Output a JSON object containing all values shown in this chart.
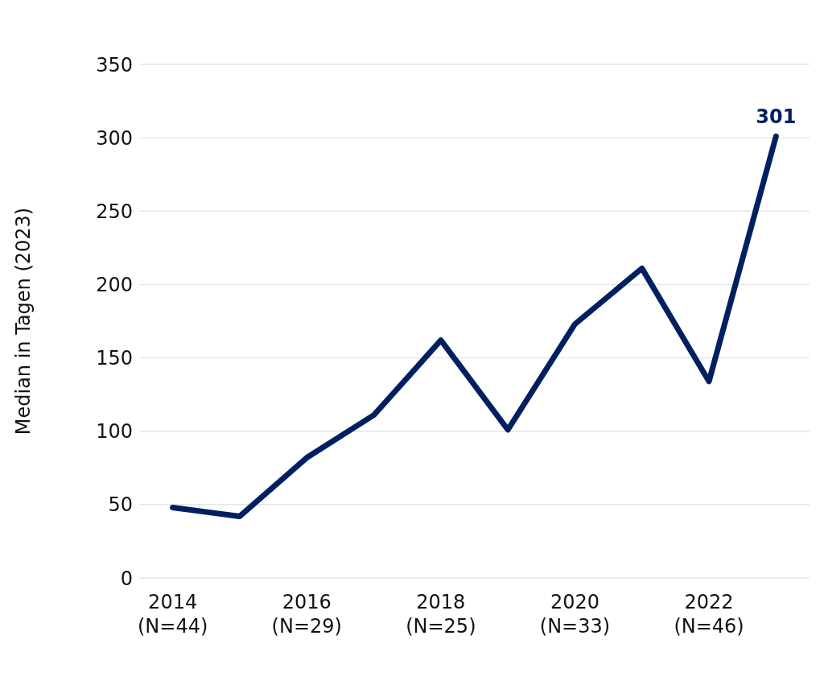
{
  "chart_data": {
    "type": "line",
    "ylabel": "Median in Tagen (2023)",
    "categories": [
      "2014\n(N=44)",
      null,
      "2016\n(N=29)",
      null,
      "2018\n(N=25)",
      null,
      "2020\n(N=33)",
      null,
      "2022\n(N=46)",
      null
    ],
    "series": [
      {
        "color": "#002060",
        "values": [
          48,
          42,
          82,
          111,
          162,
          101,
          173,
          211,
          134,
          301
        ],
        "value_labels": [
          null,
          null,
          null,
          null,
          null,
          null,
          null,
          null,
          null,
          "301"
        ]
      }
    ],
    "ylim": [
      0,
      350
    ],
    "yticks": [
      0,
      50,
      100,
      150,
      200,
      250,
      300,
      350
    ],
    "grid": "y",
    "legend": false,
    "marker": "none",
    "line_style": "solid"
  }
}
